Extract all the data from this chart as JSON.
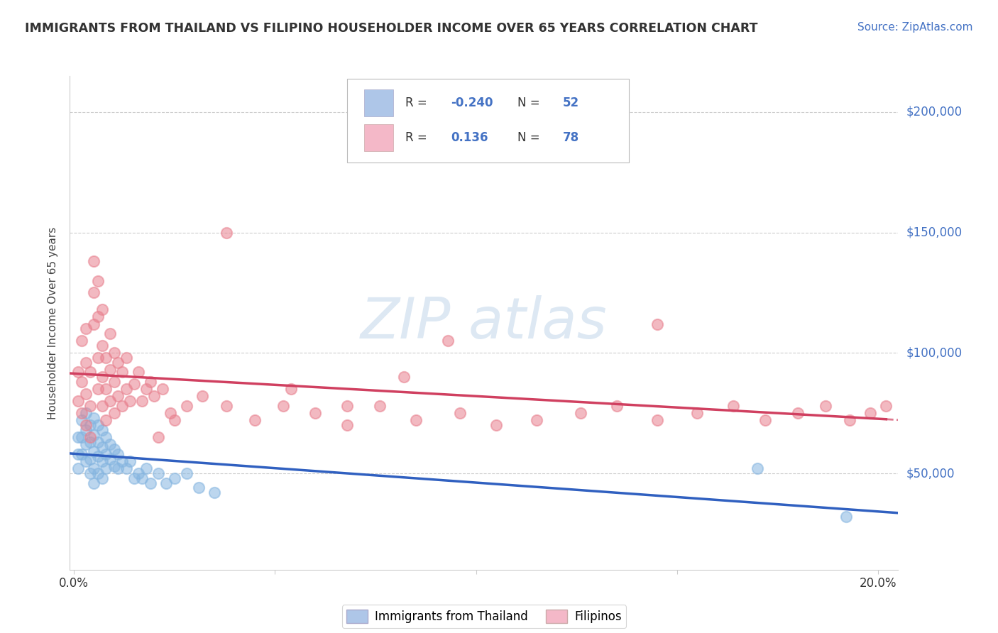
{
  "title": "IMMIGRANTS FROM THAILAND VS FILIPINO HOUSEHOLDER INCOME OVER 65 YEARS CORRELATION CHART",
  "source": "Source: ZipAtlas.com",
  "ylabel": "Householder Income Over 65 years",
  "xlim": [
    -0.001,
    0.205
  ],
  "ylim": [
    10000,
    215000
  ],
  "yticks": [
    50000,
    100000,
    150000,
    200000
  ],
  "ytick_labels": [
    "$50,000",
    "$100,000",
    "$150,000",
    "$200,000"
  ],
  "xticks": [
    0.0,
    0.05,
    0.1,
    0.15,
    0.2
  ],
  "xtick_labels": [
    "0.0%",
    "",
    "",
    "",
    "20.0%"
  ],
  "title_color": "#333333",
  "source_color": "#4472c4",
  "background_color": "#ffffff",
  "plot_background": "#ffffff",
  "grid_color": "#c8c8c8",
  "watermark_text": "ZIP atlas",
  "watermark_color": "#dde8f3",
  "legend_R1": "-0.240",
  "legend_N1": "52",
  "legend_R2": "0.136",
  "legend_N2": "78",
  "legend_color1": "#aec6e8",
  "legend_color2": "#f4b8c8",
  "scatter_color1": "#85b5e0",
  "scatter_color2": "#e8808e",
  "trend_color1": "#3060c0",
  "trend_color2": "#d04060",
  "label1": "Immigrants from Thailand",
  "label2": "Filipinos",
  "thailand_x": [
    0.001,
    0.001,
    0.001,
    0.002,
    0.002,
    0.002,
    0.003,
    0.003,
    0.003,
    0.003,
    0.004,
    0.004,
    0.004,
    0.004,
    0.005,
    0.005,
    0.005,
    0.005,
    0.005,
    0.006,
    0.006,
    0.006,
    0.006,
    0.007,
    0.007,
    0.007,
    0.007,
    0.008,
    0.008,
    0.008,
    0.009,
    0.009,
    0.01,
    0.01,
    0.011,
    0.011,
    0.012,
    0.013,
    0.014,
    0.015,
    0.016,
    0.017,
    0.018,
    0.019,
    0.021,
    0.023,
    0.025,
    0.028,
    0.031,
    0.035,
    0.17,
    0.192
  ],
  "thailand_y": [
    65000,
    58000,
    52000,
    72000,
    65000,
    58000,
    55000,
    68000,
    75000,
    62000,
    70000,
    63000,
    56000,
    50000,
    73000,
    66000,
    59000,
    52000,
    46000,
    70000,
    63000,
    57000,
    50000,
    68000,
    61000,
    55000,
    48000,
    65000,
    58000,
    52000,
    62000,
    56000,
    60000,
    53000,
    58000,
    52000,
    55000,
    52000,
    55000,
    48000,
    50000,
    48000,
    52000,
    46000,
    50000,
    46000,
    48000,
    50000,
    44000,
    42000,
    52000,
    32000
  ],
  "filipino_x": [
    0.001,
    0.001,
    0.002,
    0.002,
    0.002,
    0.003,
    0.003,
    0.003,
    0.003,
    0.004,
    0.004,
    0.004,
    0.005,
    0.005,
    0.005,
    0.006,
    0.006,
    0.006,
    0.006,
    0.007,
    0.007,
    0.007,
    0.007,
    0.008,
    0.008,
    0.008,
    0.009,
    0.009,
    0.009,
    0.01,
    0.01,
    0.01,
    0.011,
    0.011,
    0.012,
    0.012,
    0.013,
    0.013,
    0.014,
    0.015,
    0.016,
    0.017,
    0.018,
    0.019,
    0.02,
    0.022,
    0.024,
    0.028,
    0.032,
    0.038,
    0.045,
    0.052,
    0.06,
    0.068,
    0.076,
    0.085,
    0.096,
    0.105,
    0.115,
    0.126,
    0.135,
    0.145,
    0.155,
    0.164,
    0.172,
    0.18,
    0.187,
    0.193,
    0.198,
    0.202,
    0.145,
    0.068,
    0.082,
    0.093,
    0.038,
    0.054,
    0.021,
    0.025
  ],
  "filipino_y": [
    80000,
    92000,
    75000,
    88000,
    105000,
    70000,
    83000,
    96000,
    110000,
    65000,
    78000,
    92000,
    112000,
    125000,
    138000,
    85000,
    98000,
    115000,
    130000,
    78000,
    90000,
    103000,
    118000,
    72000,
    85000,
    98000,
    80000,
    93000,
    108000,
    75000,
    88000,
    100000,
    82000,
    96000,
    78000,
    92000,
    85000,
    98000,
    80000,
    87000,
    92000,
    80000,
    85000,
    88000,
    82000,
    85000,
    75000,
    78000,
    82000,
    78000,
    72000,
    78000,
    75000,
    70000,
    78000,
    72000,
    75000,
    70000,
    72000,
    75000,
    78000,
    72000,
    75000,
    78000,
    72000,
    75000,
    78000,
    72000,
    75000,
    78000,
    112000,
    78000,
    90000,
    105000,
    150000,
    85000,
    65000,
    72000
  ]
}
